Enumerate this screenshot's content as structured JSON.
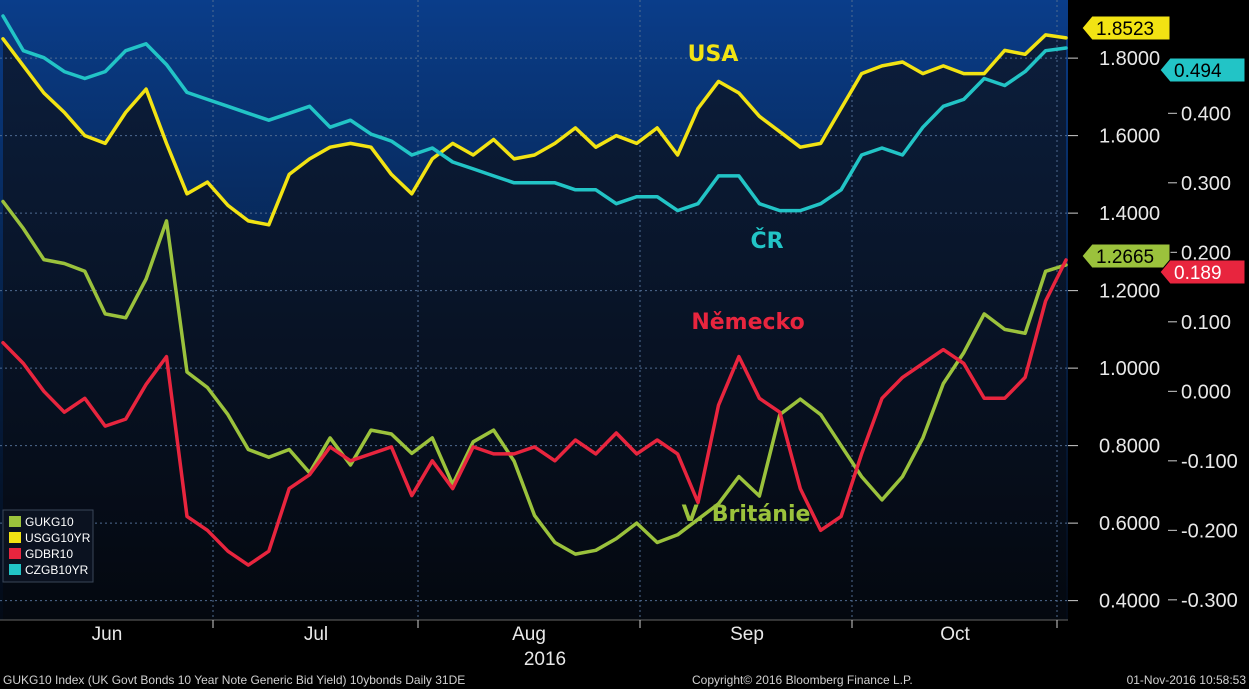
{
  "chart_data": {
    "type": "line",
    "x_labels": [
      "Jun",
      "Jul",
      "Aug",
      "Sep",
      "Oct"
    ],
    "x_year": "2016",
    "y_left": {
      "ticks": [
        "0.4000",
        "0.6000",
        "0.8000",
        "1.0000",
        "1.2000",
        "1.4000",
        "1.6000",
        "1.8000"
      ],
      "range": [
        0.35,
        1.95
      ]
    },
    "y_right": {
      "ticks": [
        "-0.300",
        "-0.200",
        "-0.100",
        "0.000",
        "0.100",
        "0.200",
        "0.300",
        "0.400"
      ],
      "range": [
        -0.329,
        0.563
      ]
    },
    "series": [
      {
        "name": "GUKG10",
        "axis": "left",
        "color": "#9bc23c",
        "last_value": "1.2665",
        "annotation": "V. Británie",
        "values": [
          1.43,
          1.36,
          1.28,
          1.27,
          1.25,
          1.14,
          1.13,
          1.23,
          1.38,
          0.99,
          0.95,
          0.88,
          0.79,
          0.77,
          0.79,
          0.73,
          0.82,
          0.75,
          0.84,
          0.83,
          0.78,
          0.82,
          0.7,
          0.81,
          0.84,
          0.76,
          0.62,
          0.55,
          0.52,
          0.53,
          0.56,
          0.6,
          0.55,
          0.57,
          0.61,
          0.65,
          0.72,
          0.67,
          0.88,
          0.92,
          0.88,
          0.8,
          0.72,
          0.66,
          0.72,
          0.82,
          0.96,
          1.04,
          1.14,
          1.1,
          1.09,
          1.25,
          1.2665
        ]
      },
      {
        "name": "USGG10YR",
        "axis": "left",
        "color": "#f2e313",
        "last_value": "1.8523",
        "annotation": "USA",
        "values": [
          1.85,
          1.78,
          1.71,
          1.66,
          1.6,
          1.58,
          1.66,
          1.72,
          1.58,
          1.45,
          1.48,
          1.42,
          1.38,
          1.37,
          1.5,
          1.54,
          1.57,
          1.58,
          1.57,
          1.5,
          1.45,
          1.54,
          1.58,
          1.55,
          1.59,
          1.54,
          1.55,
          1.58,
          1.62,
          1.57,
          1.6,
          1.58,
          1.62,
          1.55,
          1.67,
          1.74,
          1.71,
          1.65,
          1.61,
          1.57,
          1.58,
          1.67,
          1.76,
          1.78,
          1.79,
          1.76,
          1.78,
          1.76,
          1.76,
          1.82,
          1.81,
          1.86,
          1.8523
        ]
      },
      {
        "name": "GDBR10",
        "axis": "right",
        "color": "#e8253e",
        "last_value": "0.189",
        "annotation": "Německo",
        "values": [
          0.07,
          0.04,
          0.0,
          -0.03,
          -0.01,
          -0.05,
          -0.04,
          0.01,
          0.05,
          -0.18,
          -0.2,
          -0.23,
          -0.25,
          -0.23,
          -0.14,
          -0.12,
          -0.08,
          -0.1,
          -0.09,
          -0.08,
          -0.15,
          -0.1,
          -0.14,
          -0.08,
          -0.09,
          -0.09,
          -0.08,
          -0.1,
          -0.07,
          -0.09,
          -0.06,
          -0.09,
          -0.07,
          -0.09,
          -0.16,
          -0.02,
          0.05,
          -0.01,
          -0.03,
          -0.14,
          -0.2,
          -0.18,
          -0.09,
          -0.01,
          0.02,
          0.04,
          0.06,
          0.04,
          -0.01,
          -0.01,
          0.02,
          0.13,
          0.189
        ]
      },
      {
        "name": "CZGB10YR",
        "axis": "right",
        "color": "#22c4c6",
        "last_value": "0.494",
        "annotation": "ČR",
        "values": [
          0.54,
          0.49,
          0.48,
          0.46,
          0.45,
          0.46,
          0.49,
          0.5,
          0.47,
          0.43,
          0.42,
          0.41,
          0.4,
          0.39,
          0.4,
          0.41,
          0.38,
          0.39,
          0.37,
          0.36,
          0.34,
          0.35,
          0.33,
          0.32,
          0.31,
          0.3,
          0.3,
          0.3,
          0.29,
          0.29,
          0.27,
          0.28,
          0.28,
          0.26,
          0.27,
          0.31,
          0.31,
          0.27,
          0.26,
          0.26,
          0.27,
          0.29,
          0.34,
          0.35,
          0.34,
          0.38,
          0.41,
          0.42,
          0.45,
          0.44,
          0.46,
          0.49,
          0.494
        ]
      }
    ],
    "legend": {
      "position": "bottom-left",
      "entries": [
        "GUKG10",
        "USGG10YR",
        "GDBR10",
        "CZGB10YR"
      ]
    },
    "tags": [
      {
        "value": "1.8523",
        "color": "#f2e313"
      },
      {
        "value": "0.494",
        "color": "#22c4c6"
      },
      {
        "value": "1.2665",
        "color": "#9bc23c"
      },
      {
        "value": "0.189",
        "color": "#e8253e"
      }
    ],
    "footer_left": "GUKG10 Index (UK Govt Bonds 10 Year Note Generic Bid Yield) 10ybonds  Daily 31DE",
    "footer_mid": "Copyright© 2016 Bloomberg Finance L.P.",
    "footer_right": "01-Nov-2016 10:58:53"
  }
}
